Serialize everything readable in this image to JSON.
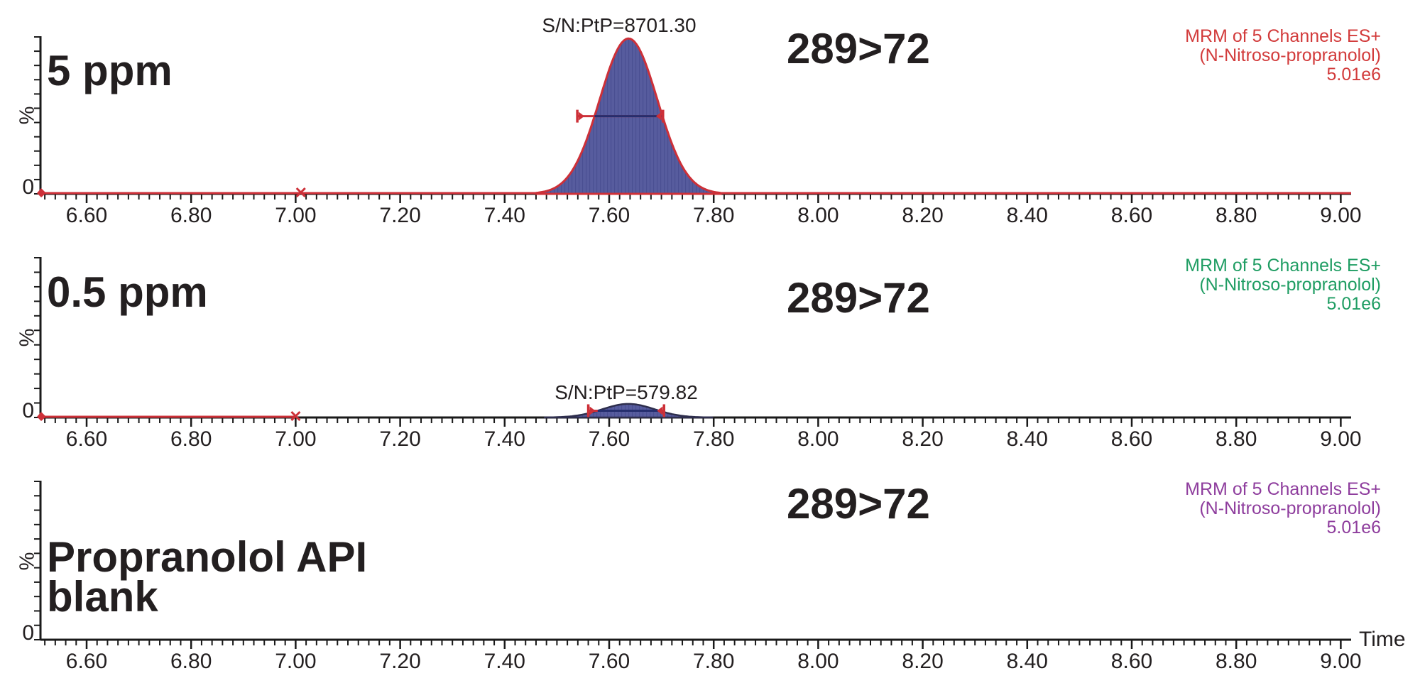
{
  "time_label": "Time",
  "colors": {
    "black_text": "#231f20",
    "axis": "#1a1a1a",
    "red_trace": "#cd3038",
    "red_text": "#d23b3b",
    "green_text": "#1f9d63",
    "purple_text": "#8e3d9d",
    "peak_fill": "#575c9e",
    "peak_hatch": "#4a4f92",
    "peak_stroke_dark": "#2e2e4d",
    "half_bar_inner": "#252e6e"
  },
  "panels": [
    {
      "label_lines": [
        "5 ppm",
        ""
      ],
      "transition": "289>72",
      "sn_label": "S/N:PtP=8701.30",
      "mrm": [
        "MRM of 5 Channels ES+",
        "(N-Nitroso-propranolol)",
        "5.01e6"
      ],
      "mrm_color": "red_text",
      "y_label": "%",
      "y_zero": "0"
    },
    {
      "label_lines": [
        "0.5 ppm",
        ""
      ],
      "transition": "289>72",
      "sn_label": "S/N:PtP=579.82",
      "mrm": [
        "MRM of 5 Channels ES+",
        "(N-Nitroso-propranolol)",
        "5.01e6"
      ],
      "mrm_color": "green_text",
      "y_label": "%",
      "y_zero": "0"
    },
    {
      "label_lines": [
        "Propranolol API",
        "blank"
      ],
      "transition": "289>72",
      "sn_label": "",
      "mrm": [
        "MRM of 5 Channels ES+",
        "(N-Nitroso-propranolol)",
        "5.01e6"
      ],
      "mrm_color": "purple_text",
      "y_label": "%",
      "y_zero": "0"
    }
  ],
  "chart_data": [
    {
      "type": "area",
      "title": "5 ppm — MRM of 5 Channels ES+ (N-Nitroso-propranolol) 289>72, 5.01e6",
      "xlabel": "Time",
      "ylabel": "%",
      "xlim": [
        6.51,
        9.02
      ],
      "x_major_ticks": [
        6.6,
        6.8,
        7.0,
        7.2,
        7.4,
        7.6,
        7.8,
        8.0,
        8.2,
        8.4,
        8.6,
        8.8,
        9.0
      ],
      "x_minor_step": 0.02,
      "trace_color_key": "red_trace",
      "red_segment": [
        6.512,
        9.02
      ],
      "baseline_marker_rt": 7.01,
      "series": [
        {
          "name": "N-Nitroso-propranolol 289>72",
          "peaks": [
            {
              "rt": 7.637,
              "fwhm": 0.13,
              "height_pct": 99,
              "sn_ptp": 8701.3,
              "stroke_key": "red_trace",
              "half_bar": [
                7.539,
                7.703
              ]
            }
          ]
        }
      ]
    },
    {
      "type": "area",
      "title": "0.5 ppm — MRM of 5 Channels ES+ (N-Nitroso-propranolol) 289>72, 5.01e6",
      "xlabel": "Time",
      "ylabel": "%",
      "xlim": [
        6.51,
        9.02
      ],
      "x_major_ticks": [
        6.6,
        6.8,
        7.0,
        7.2,
        7.4,
        7.6,
        7.8,
        8.0,
        8.2,
        8.4,
        8.6,
        8.8,
        9.0
      ],
      "x_minor_step": 0.02,
      "trace_color_key": "red_trace",
      "red_segment": [
        6.512,
        7.0
      ],
      "baseline_marker_rt": 7.0,
      "series": [
        {
          "name": "N-Nitroso-propranolol 289>72",
          "peaks": [
            {
              "rt": 7.637,
              "fwhm": 0.118,
              "height_pct": 8.5,
              "sn_ptp": 579.82,
              "stroke_key": "peak_stroke_dark",
              "half_bar": [
                7.56,
                7.705
              ]
            }
          ]
        }
      ]
    },
    {
      "type": "area",
      "title": "Propranolol API blank — MRM of 5 Channels ES+ (N-Nitroso-propranolol) 289>72, 5.01e6",
      "xlabel": "Time",
      "ylabel": "%",
      "xlim": [
        6.51,
        9.02
      ],
      "x_major_ticks": [
        6.6,
        6.8,
        7.0,
        7.2,
        7.4,
        7.6,
        7.8,
        8.0,
        8.2,
        8.4,
        8.6,
        8.8,
        9.0
      ],
      "x_minor_step": 0.02,
      "trace_color_key": "axis",
      "red_segment": null,
      "baseline_marker_rt": null,
      "series": [
        {
          "name": "N-Nitroso-propranolol 289>72",
          "peaks": []
        }
      ]
    }
  ]
}
